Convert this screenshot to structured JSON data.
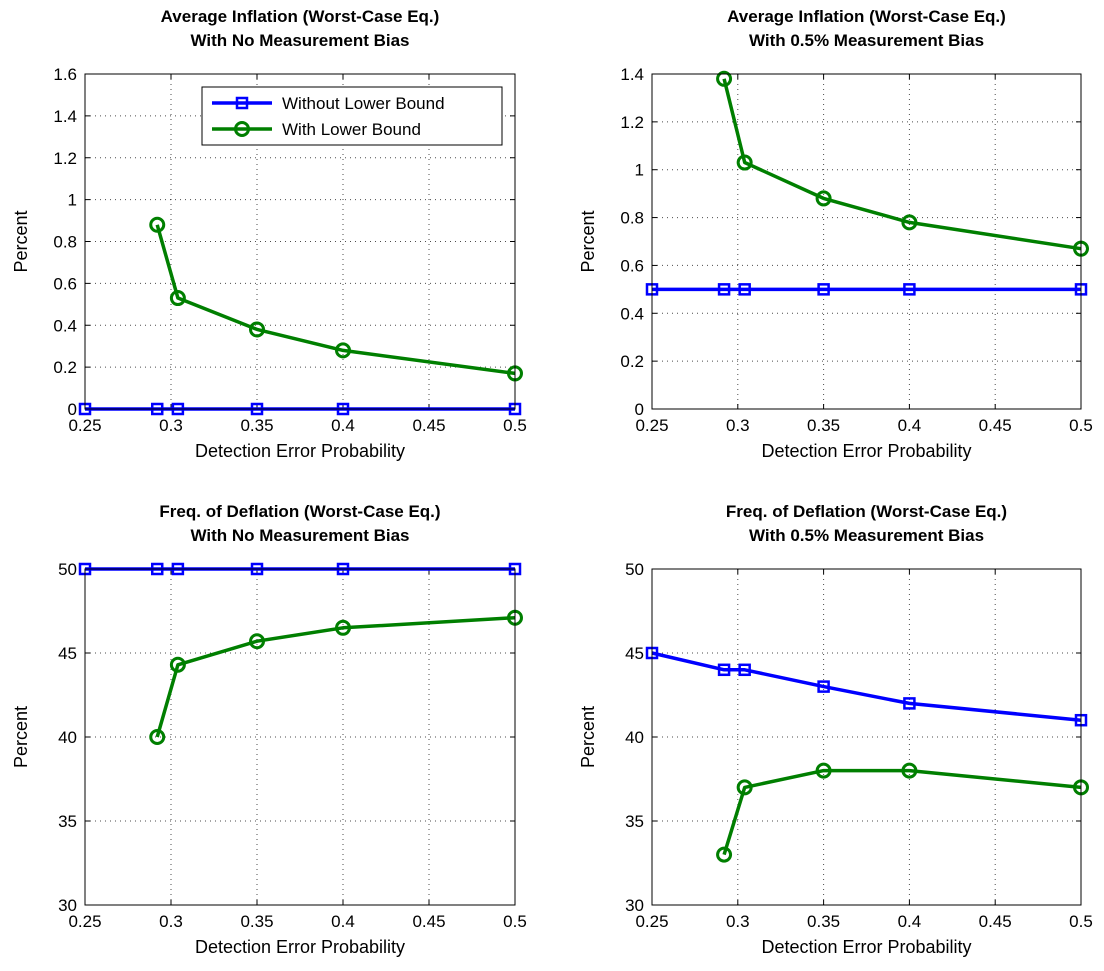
{
  "chart_data": [
    {
      "type": "line",
      "title": [
        "Average Inflation (Worst-Case Eq.)",
        "With No Measurement Bias"
      ],
      "xlabel": "Detection Error Probability",
      "ylabel": "Percent",
      "xlim": [
        0.25,
        0.5
      ],
      "ylim": [
        0,
        1.6
      ],
      "xticks": [
        0.25,
        0.3,
        0.35,
        0.4,
        0.45,
        0.5
      ],
      "xticklabels": [
        "0.25",
        "0.3",
        "0.35",
        "0.4",
        "0.45",
        "0.5"
      ],
      "yticks": [
        0,
        0.2,
        0.4,
        0.6,
        0.8,
        1,
        1.2,
        1.4,
        1.6
      ],
      "yticklabels": [
        "0",
        "0.2",
        "0.4",
        "0.6",
        "0.8",
        "1",
        "1.2",
        "1.4",
        "1.6"
      ],
      "grid": true,
      "legend_position": "top-right",
      "series": [
        {
          "name": "Without Lower Bound",
          "color": "#0000ff",
          "marker": "square",
          "x": [
            0.25,
            0.292,
            0.304,
            0.35,
            0.4,
            0.5
          ],
          "y": [
            0,
            0,
            0,
            0,
            0,
            0
          ]
        },
        {
          "name": "With Lower Bound",
          "color": "#007f00",
          "marker": "circle",
          "x": [
            0.292,
            0.304,
            0.35,
            0.4,
            0.5
          ],
          "y": [
            0.88,
            0.53,
            0.38,
            0.28,
            0.17
          ]
        }
      ]
    },
    {
      "type": "line",
      "title": [
        "Average Inflation (Worst-Case Eq.)",
        "With 0.5% Measurement Bias"
      ],
      "xlabel": "Detection Error Probability",
      "ylabel": "Percent",
      "xlim": [
        0.25,
        0.5
      ],
      "ylim": [
        0,
        1.4
      ],
      "xticks": [
        0.25,
        0.3,
        0.35,
        0.4,
        0.45,
        0.5
      ],
      "xticklabels": [
        "0.25",
        "0.3",
        "0.35",
        "0.4",
        "0.45",
        "0.5"
      ],
      "yticks": [
        0,
        0.2,
        0.4,
        0.6,
        0.8,
        1,
        1.2,
        1.4
      ],
      "yticklabels": [
        "0",
        "0.2",
        "0.4",
        "0.6",
        "0.8",
        "1",
        "1.2",
        "1.4"
      ],
      "grid": true,
      "series": [
        {
          "color": "#0000ff",
          "marker": "square",
          "x": [
            0.25,
            0.292,
            0.304,
            0.35,
            0.4,
            0.5
          ],
          "y": [
            0.5,
            0.5,
            0.5,
            0.5,
            0.5,
            0.5
          ]
        },
        {
          "color": "#007f00",
          "marker": "circle",
          "x": [
            0.292,
            0.304,
            0.35,
            0.4,
            0.5
          ],
          "y": [
            1.38,
            1.03,
            0.88,
            0.78,
            0.67
          ]
        }
      ]
    },
    {
      "type": "line",
      "title": [
        "Freq. of Deflation (Worst-Case Eq.)",
        "With No Measurement Bias"
      ],
      "xlabel": "Detection Error Probability",
      "ylabel": "Percent",
      "xlim": [
        0.25,
        0.5
      ],
      "ylim": [
        30,
        50
      ],
      "xticks": [
        0.25,
        0.3,
        0.35,
        0.4,
        0.45,
        0.5
      ],
      "xticklabels": [
        "0.25",
        "0.3",
        "0.35",
        "0.4",
        "0.45",
        "0.5"
      ],
      "yticks": [
        30,
        35,
        40,
        45,
        50
      ],
      "yticklabels": [
        "30",
        "35",
        "40",
        "45",
        "50"
      ],
      "grid": true,
      "series": [
        {
          "color": "#0000ff",
          "marker": "square",
          "x": [
            0.25,
            0.292,
            0.304,
            0.35,
            0.4,
            0.5
          ],
          "y": [
            50,
            50,
            50,
            50,
            50,
            50
          ]
        },
        {
          "color": "#007f00",
          "marker": "circle",
          "x": [
            0.292,
            0.304,
            0.35,
            0.4,
            0.5
          ],
          "y": [
            40,
            44.3,
            45.7,
            46.5,
            47.1
          ]
        }
      ]
    },
    {
      "type": "line",
      "title": [
        "Freq. of Deflation (Worst-Case Eq.)",
        "With 0.5% Measurement Bias"
      ],
      "xlabel": "Detection Error Probability",
      "ylabel": "Percent",
      "xlim": [
        0.25,
        0.5
      ],
      "ylim": [
        30,
        50
      ],
      "xticks": [
        0.25,
        0.3,
        0.35,
        0.4,
        0.45,
        0.5
      ],
      "xticklabels": [
        "0.25",
        "0.3",
        "0.35",
        "0.4",
        "0.45",
        "0.5"
      ],
      "yticks": [
        30,
        35,
        40,
        45,
        50
      ],
      "yticklabels": [
        "30",
        "35",
        "40",
        "45",
        "50"
      ],
      "grid": true,
      "series": [
        {
          "color": "#0000ff",
          "marker": "square",
          "x": [
            0.25,
            0.292,
            0.304,
            0.35,
            0.4,
            0.5
          ],
          "y": [
            45,
            44,
            44,
            43,
            42,
            41
          ]
        },
        {
          "color": "#007f00",
          "marker": "circle",
          "x": [
            0.292,
            0.304,
            0.35,
            0.4,
            0.5
          ],
          "y": [
            33,
            37,
            38,
            38,
            37
          ]
        }
      ]
    }
  ]
}
